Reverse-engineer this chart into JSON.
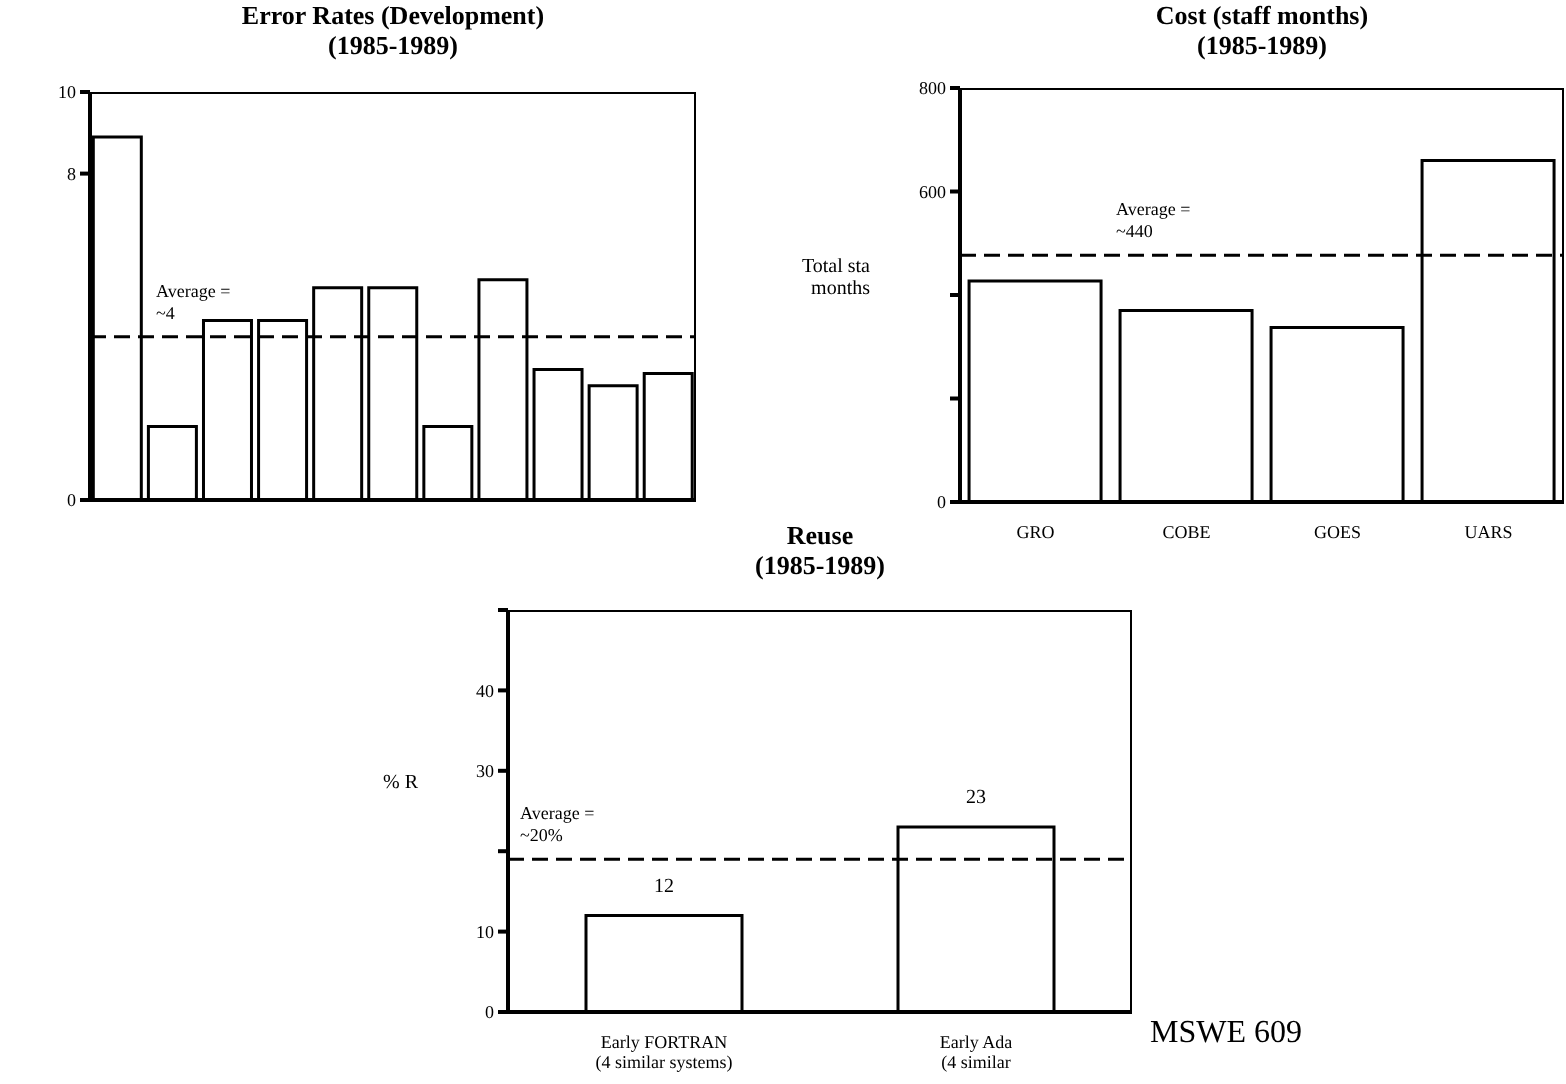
{
  "chart_data": [
    {
      "type": "bar",
      "title": "Error Rates (Development)",
      "subtitle": "(1985-1989)",
      "categories": [
        null,
        null,
        null,
        null,
        null,
        null,
        null,
        null,
        null,
        null,
        null
      ],
      "series": [
        {
          "color": "#ffffff",
          "values": [
            8.9,
            1.8,
            4.4,
            4.4,
            5.2,
            5.2,
            1.8,
            5.4,
            3.2,
            2.8,
            3.1
          ]
        }
      ],
      "ylim": [
        0,
        10
      ],
      "yticks": [
        0,
        8,
        10
      ],
      "grid": false,
      "legend": false,
      "ref_lines": [
        {
          "axis": "y",
          "value": 4,
          "label": "Average =\n~4",
          "line_style": "dashed"
        }
      ]
    },
    {
      "type": "bar",
      "title": "Cost (staff months)",
      "subtitle": "(1985-1989)",
      "ylabel": "Total sta months",
      "categories": [
        "GRO",
        "COBE",
        "GOES",
        "UARS"
      ],
      "series": [
        {
          "color": "#ffffff",
          "values": [
            427,
            370,
            337,
            660
          ]
        }
      ],
      "ylim": [
        0,
        800
      ],
      "yticks": [
        0,
        {
          "value": 200,
          "label": null
        },
        {
          "value": 400,
          "label": null
        },
        600,
        800
      ],
      "grid": false,
      "legend": false,
      "ref_lines": [
        {
          "axis": "y",
          "value": 477,
          "label": "Average =\n~440",
          "line_style": "dashed"
        }
      ]
    },
    {
      "type": "bar",
      "title": "Reuse",
      "subtitle": "(1985-1989)",
      "ylabel": "% R",
      "categories": [
        "Early FORTRAN\n(4 similar systems)",
        "Early Ada\n(4 similar"
      ],
      "series": [
        {
          "color": "#ffffff",
          "values": [
            12,
            23
          ]
        }
      ],
      "ylim": [
        0,
        50
      ],
      "yticks": [
        0,
        10,
        {
          "value": 20,
          "label": null
        },
        30,
        40,
        {
          "value": 50,
          "label": null
        }
      ],
      "grid": false,
      "legend": false,
      "data_labels": true,
      "ref_lines": [
        {
          "axis": "y",
          "value": 19,
          "label": "Average =\n~20%",
          "line_style": "dashed"
        }
      ],
      "annotations": [
        "MSWE 609"
      ]
    }
  ]
}
